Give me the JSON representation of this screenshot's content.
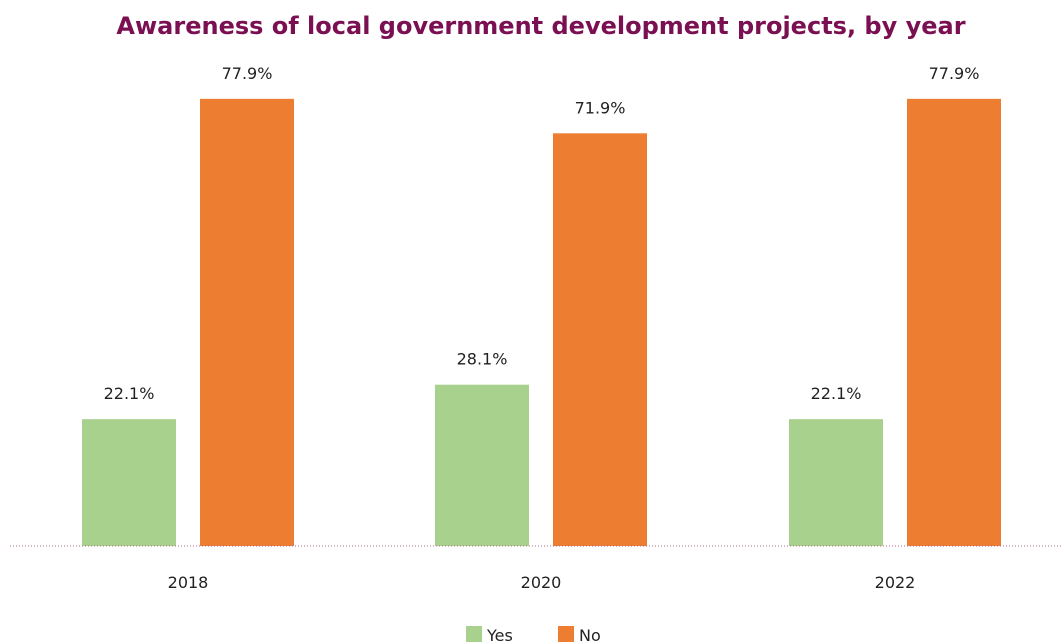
{
  "chart_data": {
    "type": "bar",
    "title": "Awareness of local government development projects, by year",
    "xlabel": "",
    "ylabel": "",
    "categories": [
      "2018",
      "2020",
      "2022"
    ],
    "series": [
      {
        "name": "Yes",
        "color": "#a9d18e",
        "values": [
          22.1,
          28.1,
          22.1
        ],
        "labels": [
          "22.1%",
          "28.1%",
          "22.1%"
        ]
      },
      {
        "name": "No",
        "color": "#ed7d31",
        "values": [
          77.9,
          71.9,
          77.9
        ],
        "labels": [
          "77.9%",
          "71.9%",
          "77.9%"
        ]
      }
    ],
    "ylim": [
      0,
      100
    ],
    "grid": false,
    "legend_position": "bottom"
  },
  "colors": {
    "title": "#7a0f52",
    "baseline": "#b06a8f"
  }
}
